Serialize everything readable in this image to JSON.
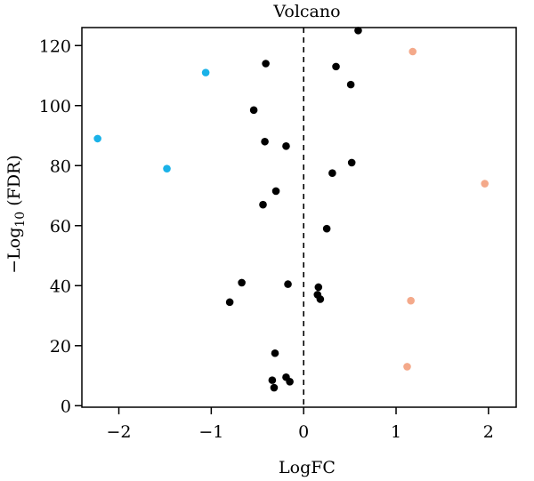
{
  "chart_data": {
    "type": "scatter",
    "title": "Volcano",
    "xlabel": "LogFC",
    "ylabel_prefix": "−Log",
    "ylabel_sub": "10",
    "ylabel_suffix": " (FDR)",
    "xlim": [
      -2.4,
      2.3
    ],
    "ylim": [
      -0.5,
      126
    ],
    "xticks": [
      -2,
      -1,
      0,
      1,
      2
    ],
    "xtick_labels": [
      "−2",
      "−1",
      "0",
      "1",
      "2"
    ],
    "yticks": [
      0,
      20,
      40,
      60,
      80,
      100,
      120
    ],
    "ytick_labels": [
      "0",
      "20",
      "40",
      "60",
      "80",
      "100",
      "120"
    ],
    "threshold_x": 0,
    "grid": false,
    "colors": {
      "down": "#1ab2e8",
      "neutral": "#000000",
      "up": "#f4a98a"
    },
    "series": [
      {
        "group": "down",
        "points": [
          [
            -2.23,
            89
          ],
          [
            -1.48,
            79
          ],
          [
            -1.06,
            111
          ]
        ]
      },
      {
        "group": "neutral",
        "points": [
          [
            0.59,
            125
          ],
          [
            -0.41,
            114
          ],
          [
            0.35,
            113
          ],
          [
            0.51,
            107
          ],
          [
            -0.54,
            98.5
          ],
          [
            -0.42,
            88
          ],
          [
            -0.19,
            86.5
          ],
          [
            0.52,
            81
          ],
          [
            0.31,
            77.5
          ],
          [
            -0.3,
            71.5
          ],
          [
            -0.44,
            67
          ],
          [
            0.25,
            59
          ],
          [
            -0.67,
            41
          ],
          [
            -0.17,
            40.5
          ],
          [
            0.16,
            39.5
          ],
          [
            0.15,
            37
          ],
          [
            0.18,
            35.5
          ],
          [
            -0.8,
            34.5
          ],
          [
            -0.31,
            17.5
          ],
          [
            -0.19,
            9.5
          ],
          [
            -0.34,
            8.5
          ],
          [
            -0.15,
            8
          ],
          [
            -0.32,
            6
          ]
        ]
      },
      {
        "group": "up",
        "points": [
          [
            1.18,
            118
          ],
          [
            1.96,
            74
          ],
          [
            1.16,
            35
          ],
          [
            1.12,
            13
          ]
        ]
      }
    ]
  }
}
